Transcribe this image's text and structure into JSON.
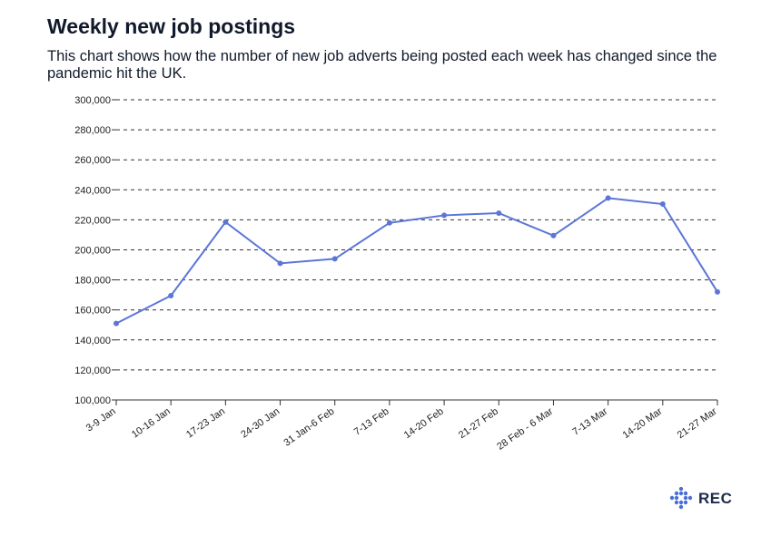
{
  "title": "Weekly new job postings",
  "subtitle": "This chart shows how the number of new job adverts being posted each week has changed since the pandemic hit the UK.",
  "brand": {
    "logo_text": "REC",
    "logo_icon": "diamond-dots-icon",
    "color": "#4a6fd8"
  },
  "chart_data": {
    "type": "line",
    "categories": [
      "3-9 Jan",
      "10-16 Jan",
      "17-23 Jan",
      "24-30 Jan",
      "31 Jan-6 Feb",
      "7-13 Feb",
      "14-20 Feb",
      "21-27 Feb",
      "28 Feb - 6 Mar",
      "7-13 Mar",
      "14-20 Mar",
      "21-27 Mar"
    ],
    "series": [
      {
        "values": [
          151000,
          169500,
          218500,
          191000,
          194000,
          218000,
          223000,
          224500,
          209500,
          234500,
          230500,
          172000
        ],
        "color": "#5b76d6"
      }
    ],
    "ylim": [
      100000,
      300000
    ],
    "yticks": [
      100000,
      120000,
      140000,
      160000,
      180000,
      200000,
      220000,
      240000,
      260000,
      280000,
      300000
    ],
    "ytick_labels": [
      "100,000",
      "120,000",
      "140,000",
      "160,000",
      "180,000",
      "200,000",
      "220,000",
      "240,000",
      "260,000",
      "280,000",
      "300,000"
    ],
    "grid": true,
    "grid_style": "dashed",
    "legend": "none"
  }
}
